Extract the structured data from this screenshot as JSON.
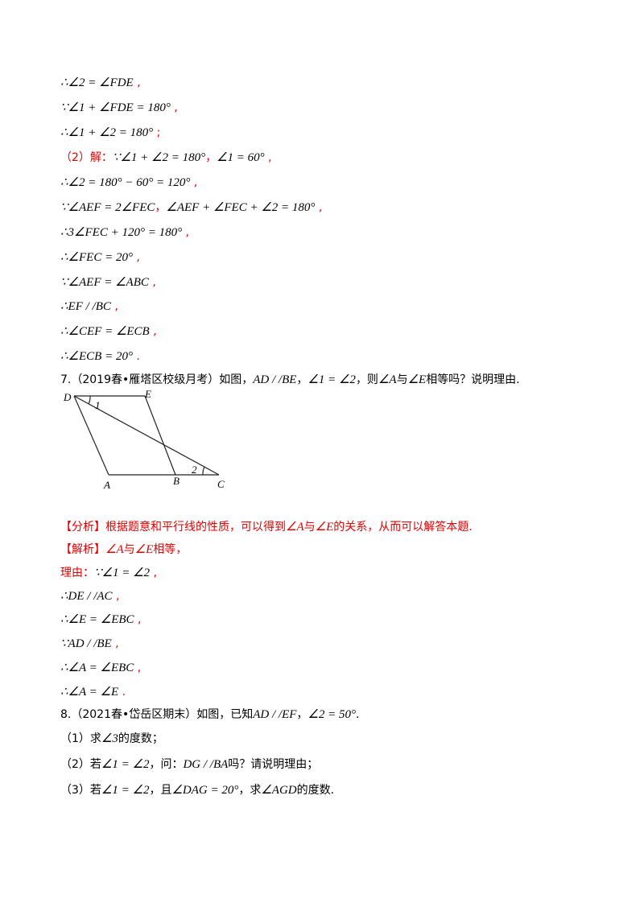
{
  "lines": [
    [
      {
        "text": "∴∠2 = ∠FDE",
        "math": true
      },
      {
        "text": " ,",
        "color": "red"
      }
    ],
    [
      {
        "text": "∵∠1 + ∠FDE = 180°",
        "math": true
      },
      {
        "text": " ,",
        "color": "red"
      }
    ],
    [
      {
        "text": "∴∠1 + ∠2 = 180°",
        "math": true
      },
      {
        "text": " ;",
        "color": "red"
      }
    ],
    [
      {
        "text": "（2）解：",
        "color": "red"
      },
      {
        "text": "∵∠1 + ∠2 = 180°",
        "math": true
      },
      {
        "text": "，",
        "color": "red"
      },
      {
        "text": "∠1 = 60°",
        "math": true
      },
      {
        "text": " ,",
        "color": "red"
      }
    ],
    [
      {
        "text": "∴∠2 = 180° − 60° = 120°",
        "math": true
      },
      {
        "text": " ,",
        "color": "red"
      }
    ],
    [
      {
        "text": "∵∠AEF = 2∠FEC",
        "math": true
      },
      {
        "text": "，",
        "color": "red"
      },
      {
        "text": "∠AEF + ∠FEC + ∠2 = 180°",
        "math": true
      },
      {
        "text": " ,",
        "color": "red"
      }
    ],
    [
      {
        "text": "∴3∠FEC + 120° = 180°",
        "math": true
      },
      {
        "text": " ,",
        "color": "red"
      }
    ],
    [
      {
        "text": "∴∠FEC = 20°",
        "math": true
      },
      {
        "text": " ,",
        "color": "red"
      }
    ],
    [
      {
        "text": "∵∠AEF = ∠ABC",
        "math": true
      },
      {
        "text": " ,",
        "color": "red"
      }
    ],
    [
      {
        "text": "∴EF / /BC",
        "math": true
      },
      {
        "text": " ,",
        "color": "red"
      }
    ],
    [
      {
        "text": "∴∠CEF = ∠ECB",
        "math": true
      },
      {
        "text": " ,",
        "color": "red"
      }
    ],
    [
      {
        "text": "∴∠ECB = 20°",
        "math": true
      },
      {
        "text": " .",
        "color": "red"
      }
    ],
    [
      {
        "text": "7.（2019春•雁塔区校级月考）如图，"
      },
      {
        "text": "AD / /BE",
        "math": true
      },
      {
        "text": "，"
      },
      {
        "text": "∠1 = ∠2",
        "math": true
      },
      {
        "text": "，则"
      },
      {
        "text": "∠A",
        "math": true
      },
      {
        "text": "与"
      },
      {
        "text": "∠E",
        "math": true
      },
      {
        "text": "相等吗？说明理由."
      }
    ],
    [
      {
        "text": "【分析】根据题意和平行线的性质，可以得到",
        "color": "red"
      },
      {
        "text": "∠A",
        "math": true,
        "color": "red"
      },
      {
        "text": "与",
        "color": "red"
      },
      {
        "text": "∠E",
        "math": true,
        "color": "red"
      },
      {
        "text": "的关系，从而可以解答本题.",
        "color": "red"
      }
    ],
    [
      {
        "text": "【解析】",
        "color": "red"
      },
      {
        "text": "∠A",
        "math": true,
        "color": "red"
      },
      {
        "text": "与",
        "color": "red"
      },
      {
        "text": "∠E",
        "math": true,
        "color": "red"
      },
      {
        "text": "相等，",
        "color": "red"
      }
    ],
    [
      {
        "text": "理由：",
        "color": "red"
      },
      {
        "text": "∵∠1 = ∠2",
        "math": true
      },
      {
        "text": " ,",
        "color": "red"
      }
    ],
    [
      {
        "text": "∴DE / /AC",
        "math": true
      },
      {
        "text": " ,",
        "color": "red"
      }
    ],
    [
      {
        "text": "∴∠E = ∠EBC",
        "math": true
      },
      {
        "text": " ,",
        "color": "red"
      }
    ],
    [
      {
        "text": "∵AD / /BE",
        "math": true
      },
      {
        "text": " ,",
        "color": "red"
      }
    ],
    [
      {
        "text": "∴∠A = ∠EBC",
        "math": true
      },
      {
        "text": " ,",
        "color": "red"
      }
    ],
    [
      {
        "text": "∴∠A = ∠E",
        "math": true
      },
      {
        "text": " .",
        "color": "red"
      }
    ],
    [
      {
        "text": "8.（2021春•岱岳区期末）如图，已知"
      },
      {
        "text": "AD / /EF",
        "math": true
      },
      {
        "text": "，"
      },
      {
        "text": "∠2 = 50°",
        "math": true
      },
      {
        "text": "."
      }
    ],
    [
      {
        "text": "（1）求"
      },
      {
        "text": "∠3",
        "math": true
      },
      {
        "text": "的度数；"
      }
    ],
    [
      {
        "text": "（2）若"
      },
      {
        "text": "∠1 = ∠2",
        "math": true
      },
      {
        "text": "，问："
      },
      {
        "text": "DG / /BA",
        "math": true
      },
      {
        "text": "吗？请说明理由；"
      }
    ],
    [
      {
        "text": "（3）若"
      },
      {
        "text": "∠1 = ∠2",
        "math": true
      },
      {
        "text": "，且"
      },
      {
        "text": "∠DAG = 20°",
        "math": true
      },
      {
        "text": "，求"
      },
      {
        "text": "∠AGD",
        "math": true
      },
      {
        "text": "的度数."
      }
    ]
  ],
  "figure": {
    "labels": [
      "D",
      "E",
      "1",
      "A",
      "B",
      "2",
      "C"
    ]
  }
}
